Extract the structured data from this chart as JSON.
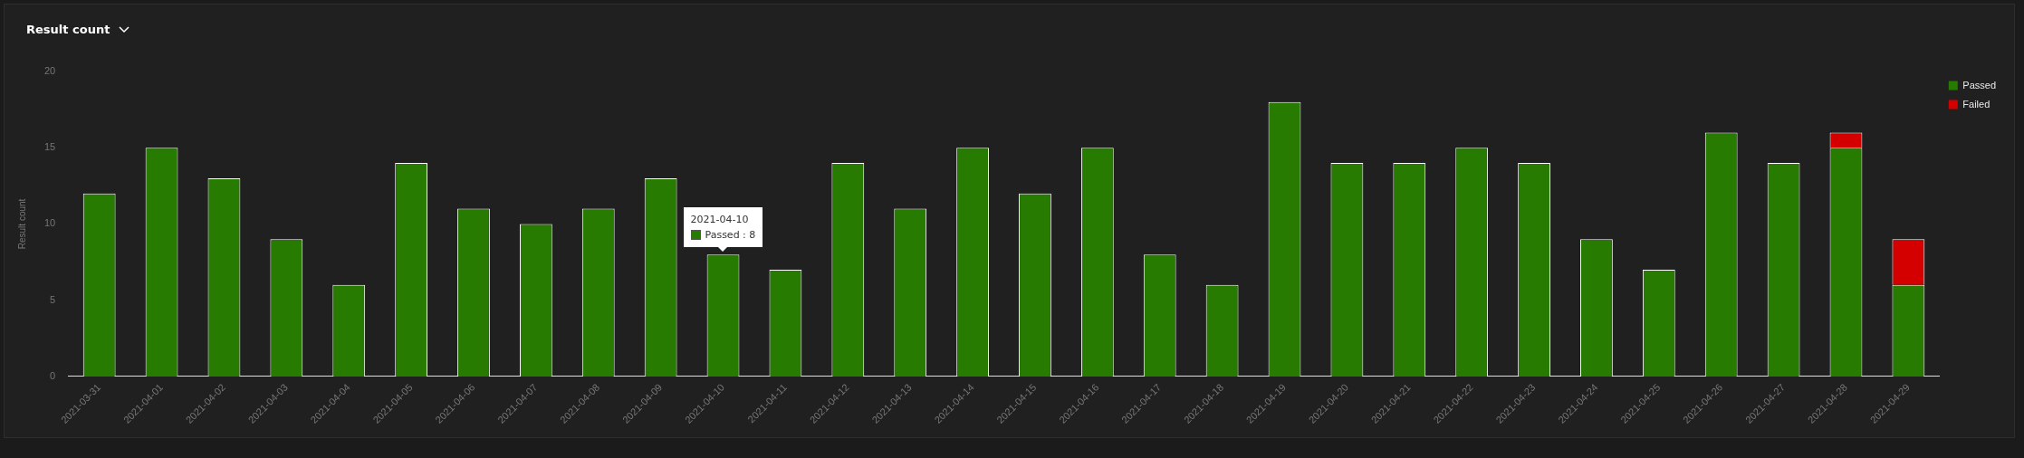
{
  "chart_data": {
    "type": "bar",
    "title": "Result count",
    "ylabel": "Result count",
    "stacked": true,
    "legend": "top right",
    "grid": false,
    "categories": [
      "2021-03-31",
      "2021-04-01",
      "2021-04-02",
      "2021-04-03",
      "2021-04-04",
      "2021-04-05",
      "2021-04-06",
      "2021-04-07",
      "2021-04-08",
      "2021-04-09",
      "2021-04-10",
      "2021-04-11",
      "2021-04-12",
      "2021-04-13",
      "2021-04-14",
      "2021-04-15",
      "2021-04-16",
      "2021-04-17",
      "2021-04-18",
      "2021-04-19",
      "2021-04-20",
      "2021-04-21",
      "2021-04-22",
      "2021-04-23",
      "2021-04-24",
      "2021-04-25",
      "2021-04-26",
      "2021-04-27",
      "2021-04-28",
      "2021-04-29"
    ],
    "series": [
      {
        "name": "Passed",
        "color": "#267b00",
        "values": [
          12,
          15,
          13,
          9,
          6,
          14,
          11,
          10,
          11,
          13,
          8,
          7,
          14,
          11,
          15,
          12,
          15,
          8,
          6,
          18,
          14,
          14,
          15,
          14,
          9,
          7,
          16,
          14,
          15,
          6
        ]
      },
      {
        "name": "Failed",
        "color": "#d40000",
        "values": [
          0,
          0,
          0,
          0,
          0,
          0,
          0,
          0,
          0,
          0,
          0,
          0,
          0,
          0,
          0,
          0,
          0,
          0,
          0,
          0,
          0,
          0,
          0,
          0,
          0,
          0,
          0,
          0,
          1,
          3
        ]
      }
    ],
    "ylim": [
      0,
      20
    ],
    "yticks": [
      0,
      5,
      10,
      15,
      20
    ],
    "annotations": [
      {
        "text": "2021-04-10",
        "x": "2021-04-10",
        "y": 8
      },
      {
        "text": "Passed : 8",
        "x": "2021-04-10",
        "y": 8
      }
    ]
  }
}
